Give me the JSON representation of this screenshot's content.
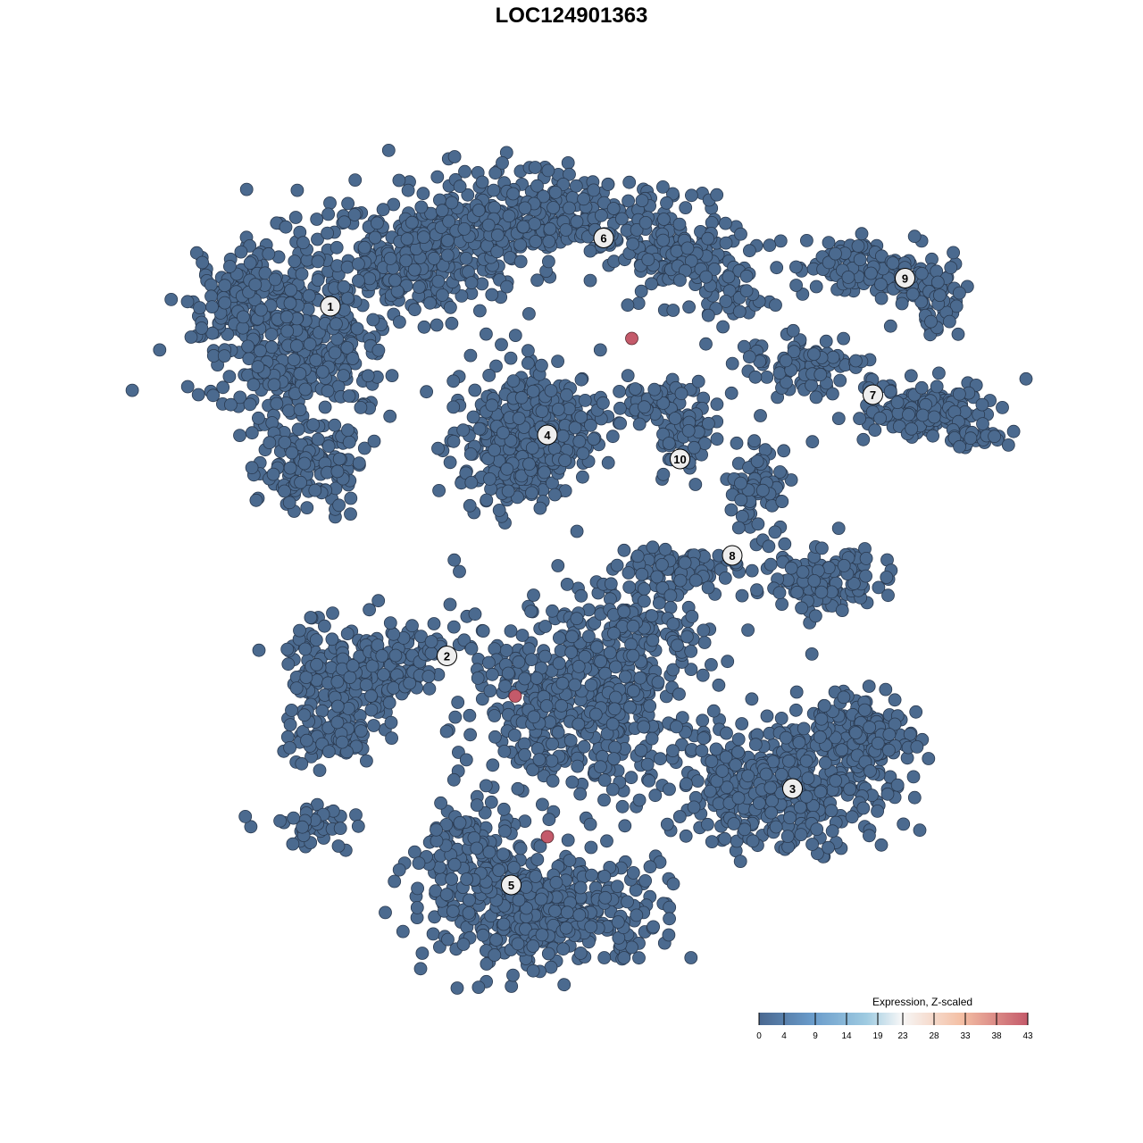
{
  "chart_data": {
    "type": "scatter",
    "title": "LOC124901363",
    "xlabel": "",
    "ylabel": "",
    "grid": false,
    "axes_visible": false,
    "clusters": [
      {
        "label": "1",
        "center": [
          -6.0,
          6.6
        ]
      },
      {
        "label": "2",
        "center": [
          -3.1,
          -2.1
        ]
      },
      {
        "label": "3",
        "center": [
          5.5,
          -5.4
        ]
      },
      {
        "label": "4",
        "center": [
          -0.6,
          3.4
        ]
      },
      {
        "label": "5",
        "center": [
          -1.5,
          -7.8
        ]
      },
      {
        "label": "6",
        "center": [
          0.8,
          8.3
        ]
      },
      {
        "label": "7",
        "center": [
          7.5,
          4.4
        ]
      },
      {
        "label": "8",
        "center": [
          4.0,
          0.4
        ]
      },
      {
        "label": "9",
        "center": [
          8.3,
          7.3
        ]
      },
      {
        "label": "10",
        "center": [
          2.7,
          2.8
        ]
      }
    ],
    "baseline_expression": 0,
    "high_expression_points": [
      {
        "x": 1.5,
        "y": 5.8,
        "value": 43
      },
      {
        "x": -1.4,
        "y": -3.1,
        "value": 43
      },
      {
        "x": -0.6,
        "y": -6.6,
        "value": 43
      }
    ],
    "legend": {
      "title": "Expression, Z-scaled",
      "position": "bottom-right",
      "ticks": [
        "0",
        "4",
        "9",
        "14",
        "19",
        "23",
        "28",
        "33",
        "38",
        "43"
      ],
      "range": [
        0,
        43
      ],
      "colors": [
        "#4a6890",
        "#6a9ccb",
        "#9fcbe1",
        "#f7f7f7",
        "#f4c0a5",
        "#c45a6a"
      ]
    }
  }
}
